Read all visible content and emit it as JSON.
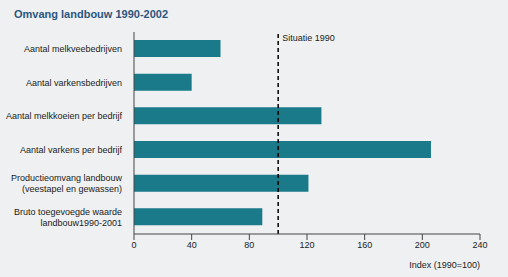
{
  "chart_data": {
    "type": "bar",
    "orientation": "horizontal",
    "title": "Omvang landbouw 1990-2002",
    "categories": [
      "Aantal melkveebedrijven",
      "Aantal varkensbedrijven",
      "Aantal melkkoeien per bedrijf",
      "Aantal varkens per bedrijf",
      "Productieomvang landbouw\n(veestapel en gewassen)",
      "Bruto toegevoegde waarde\nlandbouw1990-2001"
    ],
    "values": [
      60,
      40,
      130,
      206,
      121,
      89
    ],
    "color": "#1a7a8a",
    "xlim": [
      0,
      240
    ],
    "xticks": [
      0,
      40,
      80,
      120,
      160,
      200,
      240
    ],
    "xlabel": "Index (1990=100)",
    "reference_line": {
      "value": 100,
      "label": "Situatie 1990"
    }
  }
}
